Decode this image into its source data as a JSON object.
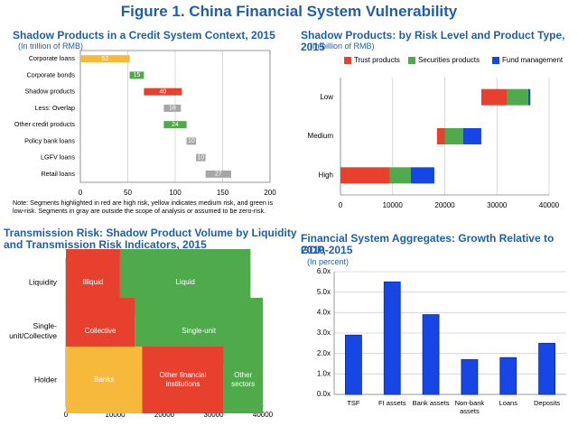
{
  "figure_title": "Figure 1. China Financial System Vulnerability",
  "panels": {
    "a": {
      "title": "Shadow Products in a Credit System Context, 2015",
      "subtitle": "(In trillion of RMB)"
    },
    "b": {
      "title": "Shadow Products: by Risk Level and Product Type, 2015",
      "subtitle": "(In billion of RMB)"
    },
    "c": {
      "title_line1": "Transmission Risk: Shadow Product Volume by Liquidity",
      "title_line2": "and Transmission Risk Indicators, 2015"
    },
    "d": {
      "title_line1": "Financial System Aggregates: Growth Relative to GDP,",
      "title_line2": "2010-2015",
      "subtitle": "(In percent)"
    }
  },
  "note": "Note: Segments highlighted in red are high risk, yellow indicates medium risk, and green is low-risk. Segments in gray are outside the scope of analysis or assumed to be zero-risk.",
  "colors": {
    "red": "#e8402f",
    "yellow": "#f6b93b",
    "green": "#4eaa4b",
    "gray": "#a6a6a6",
    "blue": "#1746e6",
    "title_blue": "#1f5fa8"
  },
  "chart_data": [
    {
      "type": "bar",
      "orientation": "horizontal-waterfall",
      "categories": [
        "Corporate loans",
        "Corporate bonds",
        "Shadow products",
        "Less: Overlap",
        "Other credit products",
        "Policy bank loans",
        "LGFV loans",
        "Retail loans"
      ],
      "segments": [
        {
          "start": 0,
          "value": 52,
          "label": "52",
          "risk": "yellow"
        },
        {
          "start": 52,
          "value": 15,
          "label": "15",
          "risk": "green"
        },
        {
          "start": 67,
          "value": 40,
          "label": "40",
          "risk": "red"
        },
        {
          "start": 88,
          "value": 18,
          "label": "18",
          "risk": "gray"
        },
        {
          "start": 88,
          "value": 24,
          "label": "24",
          "risk": "green"
        },
        {
          "start": 112,
          "value": 10,
          "label": "10",
          "risk": "gray"
        },
        {
          "start": 122,
          "value": 10,
          "label": "10",
          "risk": "gray"
        },
        {
          "start": 132,
          "value": 27,
          "label": "27",
          "risk": "gray"
        }
      ],
      "xlim": [
        0,
        200
      ],
      "xticks": [
        "0",
        "50",
        "100",
        "150",
        "200"
      ],
      "grid": "vertical"
    },
    {
      "type": "bar",
      "orientation": "horizontal-stacked",
      "categories": [
        "Low",
        "Medium",
        "High"
      ],
      "series": [
        {
          "name": "Trust products",
          "color": "red",
          "starts": [
            27000,
            18500,
            0
          ],
          "values": [
            5000,
            1500,
            9500
          ]
        },
        {
          "name": "Securities products",
          "color": "green",
          "starts": [
            32000,
            20000,
            9500
          ],
          "values": [
            4000,
            3500,
            4000
          ]
        },
        {
          "name": "Fund management",
          "color": "blue",
          "starts": [
            36000,
            23500,
            13500
          ],
          "values": [
            400,
            3500,
            4500
          ]
        }
      ],
      "xlim": [
        0,
        40000
      ],
      "xticks": [
        "0",
        "10000",
        "20000",
        "30000",
        "40000"
      ],
      "legend": "top",
      "grid": "vertical"
    },
    {
      "type": "bar",
      "orientation": "horizontal-stacked",
      "categories": [
        "Liquidity",
        "Single-unit/Collective",
        "Holder"
      ],
      "category_display": [
        [
          "Liquidity"
        ],
        [
          "Single-",
          "unit/Collective"
        ],
        [
          "Holder"
        ]
      ],
      "rows": [
        [
          {
            "label": [
              "Illiquid"
            ],
            "value": 11000,
            "color": "red"
          },
          {
            "label": [
              "Liquid"
            ],
            "value": 26500,
            "color": "green"
          }
        ],
        [
          {
            "label": [
              "Collective"
            ],
            "value": 14000,
            "color": "red"
          },
          {
            "label": [
              "Single-unit"
            ],
            "value": 26000,
            "color": "green"
          }
        ],
        [
          {
            "label": [
              "Banks"
            ],
            "value": 15500,
            "color": "yellow"
          },
          {
            "label": [
              "Other financial",
              "institutions"
            ],
            "value": 16500,
            "color": "red"
          },
          {
            "label": [
              "Other",
              "sectors"
            ],
            "value": 8000,
            "color": "green"
          }
        ]
      ],
      "xlim": [
        0,
        40000
      ],
      "xticks": [
        "0",
        "10000",
        "20000",
        "30000",
        "40000"
      ]
    },
    {
      "type": "bar",
      "categories": [
        "TSF",
        "FI assets",
        "Bank assets",
        "Non-bank assets",
        "Loans",
        "Deposits"
      ],
      "category_display": [
        [
          "TSF"
        ],
        [
          "FI assets"
        ],
        [
          "Bank assets"
        ],
        [
          "Non-bank",
          "assets"
        ],
        [
          "Loans"
        ],
        [
          "Deposits"
        ]
      ],
      "values": [
        2.9,
        5.5,
        3.9,
        1.7,
        1.8,
        2.5
      ],
      "ylim": [
        0,
        6
      ],
      "yticks": [
        "0.0x",
        "1.0x",
        "2.0x",
        "3.0x",
        "4.0x",
        "5.0x",
        "6.0x"
      ],
      "grid": "horizontal"
    }
  ]
}
